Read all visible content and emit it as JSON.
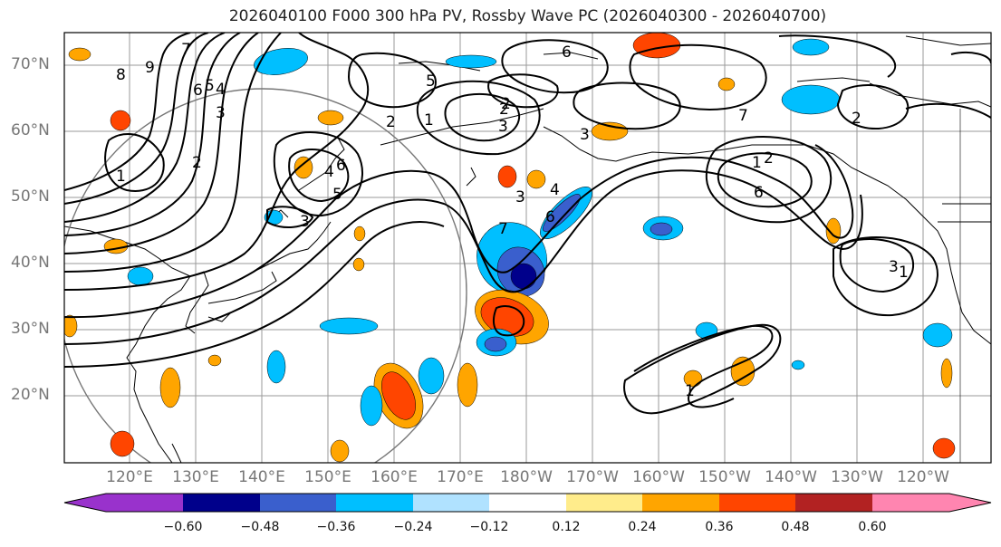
{
  "title": "2026040100 F000 300 hPa PV, Rossby Wave PC (2026040300 - 2026040700)",
  "lat_labels": [
    "70°N",
    "60°N",
    "50°N",
    "40°N",
    "30°N",
    "20°N"
  ],
  "lon_labels": [
    "120°E",
    "130°E",
    "140°E",
    "150°E",
    "160°E",
    "170°E",
    "180°W",
    "170°W",
    "160°W",
    "150°W",
    "140°W",
    "130°W",
    "120°W"
  ],
  "colorbar": {
    "ticks": [
      "−0.60",
      "−0.48",
      "−0.36",
      "−0.24",
      "−0.12",
      "0.12",
      "0.24",
      "0.36",
      "0.48",
      "0.60"
    ],
    "colors": [
      "#9932cc",
      "#00008b",
      "#3a5fcd",
      "#00bfff",
      "#b0e2ff",
      "#ffffff",
      "#ffec8b",
      "#ffa500",
      "#ff4500",
      "#b22222",
      "#ff85b0"
    ]
  },
  "contour_labels": [
    "8",
    "9",
    "7",
    "6",
    "5",
    "4",
    "3",
    "2",
    "1",
    "6",
    "4",
    "5",
    "3",
    "2",
    "1",
    "2",
    "3",
    "3",
    "2",
    "6",
    "5",
    "7",
    "3",
    "6",
    "4",
    "6",
    "7",
    "2",
    "1",
    "2",
    "3",
    "1",
    "1"
  ]
}
